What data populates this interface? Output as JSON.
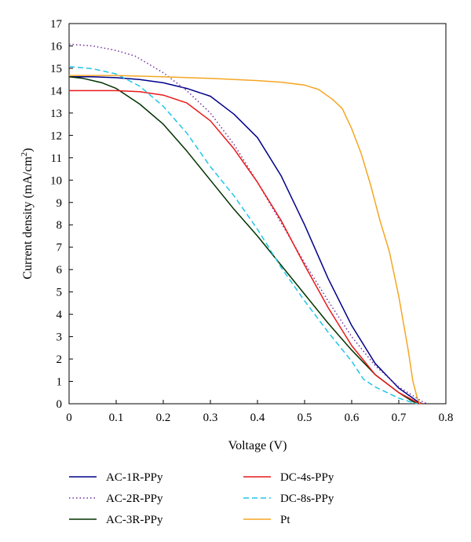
{
  "chart_data": {
    "type": "line",
    "title": "",
    "xlabel": "Voltage (V)",
    "ylabel_main": "Current density (mA/cm",
    "ylabel_sup": "2",
    "ylabel_tail": ")",
    "xlim": [
      0,
      0.8
    ],
    "ylim": [
      0,
      17
    ],
    "xticks": [
      "0",
      "0.1",
      "0.2",
      "0.3",
      "0.4",
      "0.5",
      "0.6",
      "0.7",
      "0.8"
    ],
    "yticks": [
      "0",
      "1",
      "2",
      "3",
      "4",
      "5",
      "6",
      "7",
      "8",
      "9",
      "10",
      "11",
      "12",
      "13",
      "14",
      "15",
      "16",
      "17"
    ],
    "grid": false,
    "legend_position": "below",
    "series": [
      {
        "name": "AC-1R-PPy",
        "color": "#00008b",
        "dash": "solid",
        "points": [
          [
            0,
            14.62
          ],
          [
            0.05,
            14.62
          ],
          [
            0.1,
            14.58
          ],
          [
            0.15,
            14.5
          ],
          [
            0.2,
            14.35
          ],
          [
            0.25,
            14.1
          ],
          [
            0.3,
            13.75
          ],
          [
            0.35,
            12.95
          ],
          [
            0.4,
            11.9
          ],
          [
            0.45,
            10.2
          ],
          [
            0.5,
            8.0
          ],
          [
            0.55,
            5.6
          ],
          [
            0.6,
            3.5
          ],
          [
            0.65,
            1.8
          ],
          [
            0.7,
            0.7
          ],
          [
            0.74,
            0.1
          ],
          [
            0.75,
            0
          ]
        ]
      },
      {
        "name": "AC-2R-PPy",
        "color": "#7030a0",
        "dash": "dotted",
        "points": [
          [
            0,
            16.08
          ],
          [
            0.05,
            16.0
          ],
          [
            0.1,
            15.8
          ],
          [
            0.14,
            15.55
          ],
          [
            0.2,
            14.8
          ],
          [
            0.25,
            14.0
          ],
          [
            0.3,
            13.0
          ],
          [
            0.35,
            11.6
          ],
          [
            0.4,
            9.9
          ],
          [
            0.45,
            8.1
          ],
          [
            0.5,
            6.3
          ],
          [
            0.55,
            4.6
          ],
          [
            0.6,
            3.0
          ],
          [
            0.65,
            1.7
          ],
          [
            0.7,
            0.75
          ],
          [
            0.75,
            0.1
          ],
          [
            0.76,
            0
          ]
        ]
      },
      {
        "name": "AC-3R-PPy",
        "color": "#003300",
        "dash": "solid",
        "points": [
          [
            0,
            14.62
          ],
          [
            0.03,
            14.55
          ],
          [
            0.07,
            14.35
          ],
          [
            0.1,
            14.1
          ],
          [
            0.15,
            13.4
          ],
          [
            0.2,
            12.5
          ],
          [
            0.25,
            11.3
          ],
          [
            0.3,
            10.0
          ],
          [
            0.35,
            8.7
          ],
          [
            0.4,
            7.5
          ],
          [
            0.45,
            6.2
          ],
          [
            0.5,
            4.9
          ],
          [
            0.55,
            3.6
          ],
          [
            0.6,
            2.4
          ],
          [
            0.65,
            1.3
          ],
          [
            0.7,
            0.5
          ],
          [
            0.73,
            0.1
          ],
          [
            0.74,
            0
          ]
        ]
      },
      {
        "name": "DC-4s-PPy",
        "color": "#e8191b",
        "dash": "solid",
        "points": [
          [
            0,
            14.0
          ],
          [
            0.05,
            14.0
          ],
          [
            0.1,
            14.0
          ],
          [
            0.15,
            13.95
          ],
          [
            0.2,
            13.8
          ],
          [
            0.25,
            13.45
          ],
          [
            0.3,
            12.65
          ],
          [
            0.35,
            11.4
          ],
          [
            0.4,
            9.9
          ],
          [
            0.45,
            8.2
          ],
          [
            0.5,
            6.2
          ],
          [
            0.55,
            4.3
          ],
          [
            0.6,
            2.6
          ],
          [
            0.65,
            1.3
          ],
          [
            0.7,
            0.5
          ],
          [
            0.74,
            0.05
          ],
          [
            0.75,
            0
          ]
        ]
      },
      {
        "name": "DC-8s-PPy",
        "color": "#22c5e6",
        "dash": "dashed",
        "points": [
          [
            0,
            15.08
          ],
          [
            0.05,
            14.98
          ],
          [
            0.1,
            14.75
          ],
          [
            0.15,
            14.2
          ],
          [
            0.2,
            13.3
          ],
          [
            0.25,
            12.1
          ],
          [
            0.3,
            10.6
          ],
          [
            0.35,
            9.3
          ],
          [
            0.4,
            7.8
          ],
          [
            0.45,
            6.1
          ],
          [
            0.5,
            4.6
          ],
          [
            0.55,
            3.2
          ],
          [
            0.6,
            1.9
          ],
          [
            0.625,
            1.1
          ],
          [
            0.65,
            0.75
          ],
          [
            0.7,
            0.25
          ],
          [
            0.73,
            0.05
          ],
          [
            0.74,
            0
          ]
        ]
      },
      {
        "name": "Pt",
        "color": "#f5a623",
        "dash": "solid",
        "points": [
          [
            0,
            14.68
          ],
          [
            0.1,
            14.68
          ],
          [
            0.2,
            14.62
          ],
          [
            0.3,
            14.55
          ],
          [
            0.4,
            14.45
          ],
          [
            0.45,
            14.38
          ],
          [
            0.5,
            14.25
          ],
          [
            0.53,
            14.05
          ],
          [
            0.56,
            13.6
          ],
          [
            0.58,
            13.2
          ],
          [
            0.6,
            12.3
          ],
          [
            0.62,
            11.2
          ],
          [
            0.64,
            9.8
          ],
          [
            0.66,
            8.2
          ],
          [
            0.68,
            6.8
          ],
          [
            0.7,
            4.8
          ],
          [
            0.72,
            2.4
          ],
          [
            0.73,
            1.0
          ],
          [
            0.74,
            0.2
          ],
          [
            0.745,
            0
          ]
        ]
      }
    ]
  }
}
